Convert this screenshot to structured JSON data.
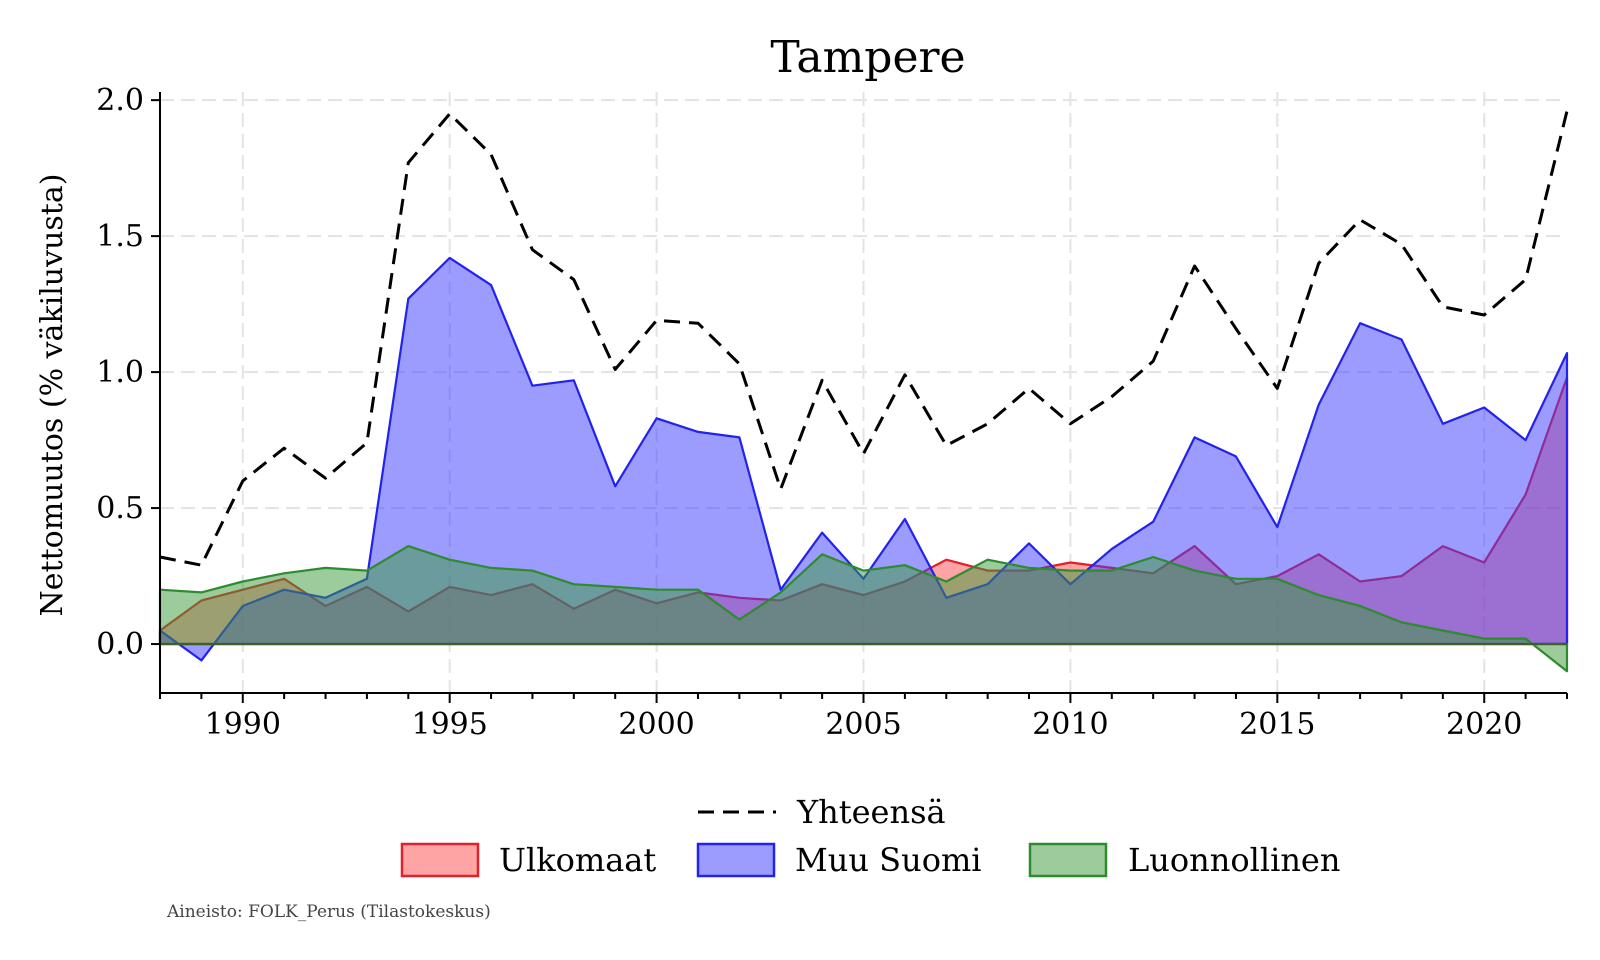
{
  "chart_data": {
    "type": "area",
    "title": "Tampere",
    "ylabel": "Nettomuutos (% väkiluvusta)",
    "xlabel": "",
    "xlim": [
      1988,
      2022
    ],
    "ylim": [
      -0.18,
      2.03
    ],
    "x_ticks": [
      1990,
      1995,
      2000,
      2005,
      2010,
      2015,
      2020
    ],
    "x_tick_labels": [
      "1990",
      "1995",
      "2000",
      "2005",
      "2010",
      "2015",
      "2020"
    ],
    "y_ticks": [
      0.0,
      0.5,
      1.0,
      1.5,
      2.0
    ],
    "y_tick_labels": [
      "0.0",
      "0.5",
      "1.0",
      "1.5",
      "2.0"
    ],
    "grid": true,
    "legend_position": "bottom",
    "x": [
      1988,
      1989,
      1990,
      1991,
      1992,
      1993,
      1994,
      1995,
      1996,
      1997,
      1998,
      1999,
      2000,
      2001,
      2002,
      2003,
      2004,
      2005,
      2006,
      2007,
      2008,
      2009,
      2010,
      2011,
      2012,
      2013,
      2014,
      2015,
      2016,
      2017,
      2018,
      2019,
      2020,
      2021,
      2022
    ],
    "series": [
      {
        "name": "Ulkomaat",
        "kind": "area",
        "fill": "#ff5a5a",
        "stroke": "#e0202a",
        "opacity": 0.55,
        "values": [
          0.05,
          0.16,
          0.2,
          0.24,
          0.14,
          0.21,
          0.12,
          0.21,
          0.18,
          0.22,
          0.13,
          0.2,
          0.15,
          0.19,
          0.17,
          0.16,
          0.22,
          0.18,
          0.23,
          0.31,
          0.27,
          0.27,
          0.3,
          0.28,
          0.26,
          0.36,
          0.22,
          0.25,
          0.33,
          0.23,
          0.25,
          0.36,
          0.3,
          0.55,
          0.98
        ]
      },
      {
        "name": "Muu Suomi",
        "kind": "area",
        "fill": "#3a3aff",
        "stroke": "#2222ee",
        "opacity": 0.5,
        "values": [
          0.05,
          -0.06,
          0.14,
          0.2,
          0.17,
          0.24,
          1.27,
          1.42,
          1.32,
          0.95,
          0.97,
          0.58,
          0.83,
          0.78,
          0.76,
          0.2,
          0.41,
          0.24,
          0.46,
          0.17,
          0.22,
          0.37,
          0.22,
          0.35,
          0.45,
          0.76,
          0.69,
          0.43,
          0.88,
          1.18,
          1.12,
          0.81,
          0.87,
          0.75,
          1.07
        ]
      },
      {
        "name": "Luonnollinen",
        "kind": "area",
        "fill": "#3a9a3a",
        "stroke": "#2e8b2e",
        "opacity": 0.5,
        "values": [
          0.2,
          0.19,
          0.23,
          0.26,
          0.28,
          0.27,
          0.36,
          0.31,
          0.28,
          0.27,
          0.22,
          0.21,
          0.2,
          0.2,
          0.09,
          0.19,
          0.33,
          0.27,
          0.29,
          0.23,
          0.31,
          0.28,
          0.27,
          0.27,
          0.32,
          0.27,
          0.24,
          0.24,
          0.18,
          0.14,
          0.08,
          0.05,
          0.02,
          0.02,
          -0.1
        ]
      },
      {
        "name": "Yhteensä",
        "kind": "line",
        "stroke": "#000000",
        "dash": "dashed",
        "values": [
          0.32,
          0.29,
          0.6,
          0.72,
          0.61,
          0.74,
          1.77,
          1.95,
          1.8,
          1.45,
          1.34,
          1.01,
          1.19,
          1.18,
          1.03,
          0.57,
          0.97,
          0.7,
          0.99,
          0.73,
          0.81,
          0.94,
          0.81,
          0.91,
          1.04,
          1.39,
          1.16,
          0.94,
          1.4,
          1.56,
          1.47,
          1.24,
          1.21,
          1.34,
          1.96
        ]
      }
    ]
  },
  "legend": {
    "line_label": "Yhteensä",
    "area_labels": [
      "Ulkomaat",
      "Muu Suomi",
      "Luonnollinen"
    ]
  },
  "footer": {
    "source": "Aineisto: FOLK_Perus (Tilastokeskus)"
  }
}
